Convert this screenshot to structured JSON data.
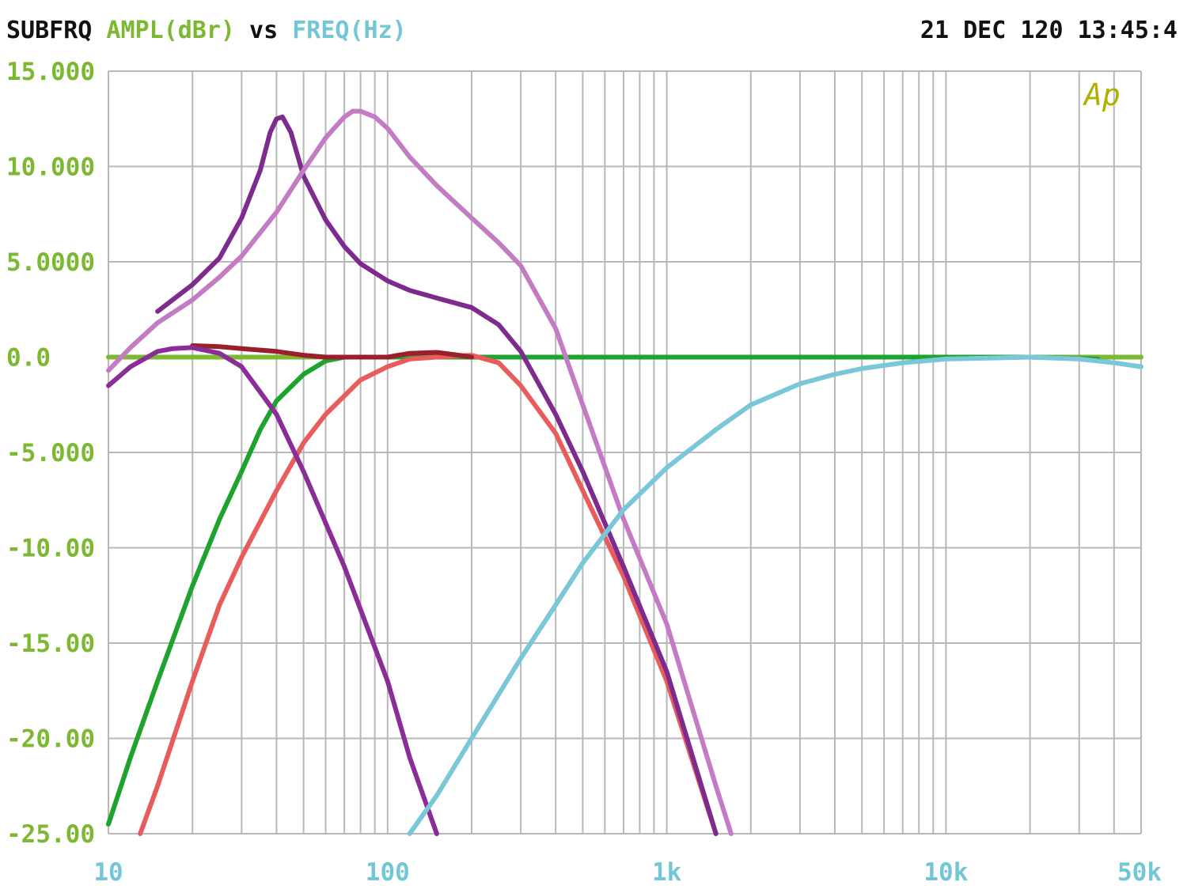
{
  "header": {
    "left_parts": [
      {
        "text": "SUBFRQ",
        "color": "#111111"
      },
      {
        "text": "AMPL(dBr)",
        "color": "#7cb832"
      },
      {
        "text": "vs",
        "color": "#111111"
      },
      {
        "text": "FREQ(Hz)",
        "color": "#72c6d6"
      }
    ],
    "timestamp": "21 DEC 120 13:45:4"
  },
  "logo": {
    "text": "Ap",
    "color": "#b0b000"
  },
  "colors": {
    "grid": "#b8b8b8",
    "y_tick_label": "#7cb832",
    "x_tick_label": "#72c6d6",
    "background": "#ffffff"
  },
  "chart_data": {
    "type": "line",
    "title": "",
    "xlabel": "FREQ(Hz)",
    "ylabel": "AMPL(dBr)",
    "x_scale": "log",
    "xlim": [
      10,
      50000
    ],
    "ylim": [
      -25,
      15
    ],
    "grid": true,
    "y_ticks": [
      15,
      10,
      5,
      0,
      -5,
      -10,
      -15,
      -20,
      -25
    ],
    "y_tick_labels": [
      "15.000",
      "10.000",
      "5.0000",
      "0.0",
      "-5.000",
      "-10.00",
      "-15.00",
      "-20.00",
      "-25.00"
    ],
    "x_ticks": [
      10,
      100,
      1000,
      10000,
      50000
    ],
    "x_tick_labels": [
      "10",
      "100",
      "1k",
      "10k",
      "50k"
    ],
    "series": [
      {
        "color": "#7cb832",
        "points": [
          [
            10,
            0
          ],
          [
            50000,
            0
          ]
        ]
      },
      {
        "color": "#1ea32e",
        "points": [
          [
            10,
            -24.5
          ],
          [
            12,
            -21
          ],
          [
            15,
            -17
          ],
          [
            20,
            -12
          ],
          [
            25,
            -8.5
          ],
          [
            30,
            -6
          ],
          [
            35,
            -3.8
          ],
          [
            40,
            -2.3
          ],
          [
            50,
            -0.9
          ],
          [
            60,
            -0.2
          ],
          [
            70,
            0
          ],
          [
            200,
            0
          ],
          [
            1000,
            0
          ],
          [
            10000,
            0
          ],
          [
            20000,
            0
          ],
          [
            35000,
            -0.1
          ]
        ]
      },
      {
        "color": "#e85c5c",
        "points": [
          [
            13,
            -25
          ],
          [
            15,
            -22.5
          ],
          [
            20,
            -17
          ],
          [
            25,
            -13
          ],
          [
            30,
            -10.5
          ],
          [
            40,
            -7
          ],
          [
            50,
            -4.5
          ],
          [
            60,
            -3
          ],
          [
            80,
            -1.2
          ],
          [
            100,
            -0.5
          ],
          [
            120,
            -0.1
          ],
          [
            150,
            0
          ],
          [
            200,
            0.1
          ],
          [
            250,
            -0.3
          ],
          [
            300,
            -1.5
          ],
          [
            400,
            -4
          ],
          [
            500,
            -7
          ],
          [
            700,
            -11.5
          ],
          [
            1000,
            -17
          ],
          [
            1500,
            -25
          ]
        ]
      },
      {
        "color": "#9a1f2a",
        "points": [
          [
            20,
            0.6
          ],
          [
            25,
            0.55
          ],
          [
            30,
            0.45
          ],
          [
            40,
            0.3
          ],
          [
            50,
            0.1
          ],
          [
            60,
            0
          ],
          [
            70,
            0
          ],
          [
            100,
            0
          ],
          [
            120,
            0.2
          ],
          [
            150,
            0.25
          ],
          [
            180,
            0.1
          ],
          [
            200,
            0
          ]
        ]
      },
      {
        "color": "#8b2d96",
        "points": [
          [
            10,
            -1.5
          ],
          [
            12,
            -0.5
          ],
          [
            15,
            0.3
          ],
          [
            17,
            0.45
          ],
          [
            20,
            0.5
          ],
          [
            25,
            0.2
          ],
          [
            30,
            -0.5
          ],
          [
            40,
            -3
          ],
          [
            50,
            -6
          ],
          [
            70,
            -11
          ],
          [
            100,
            -17
          ],
          [
            120,
            -21
          ],
          [
            150,
            -25
          ]
        ]
      },
      {
        "color": "#7e2b8e",
        "points": [
          [
            15,
            2.4
          ],
          [
            20,
            3.8
          ],
          [
            25,
            5.2
          ],
          [
            30,
            7.3
          ],
          [
            35,
            9.8
          ],
          [
            38,
            11.8
          ],
          [
            40,
            12.5
          ],
          [
            42,
            12.6
          ],
          [
            45,
            11.8
          ],
          [
            50,
            9.5
          ],
          [
            60,
            7.2
          ],
          [
            70,
            5.8
          ],
          [
            80,
            4.9
          ],
          [
            100,
            4
          ],
          [
            120,
            3.5
          ],
          [
            150,
            3.1
          ],
          [
            200,
            2.6
          ],
          [
            250,
            1.7
          ],
          [
            300,
            0.3
          ],
          [
            400,
            -3
          ],
          [
            500,
            -6
          ],
          [
            700,
            -11
          ],
          [
            1000,
            -16.5
          ],
          [
            1500,
            -25
          ]
        ]
      },
      {
        "color": "#c37cc4",
        "points": [
          [
            10,
            -0.7
          ],
          [
            12,
            0.5
          ],
          [
            15,
            1.8
          ],
          [
            20,
            3
          ],
          [
            25,
            4.2
          ],
          [
            30,
            5.3
          ],
          [
            40,
            7.6
          ],
          [
            50,
            9.8
          ],
          [
            60,
            11.5
          ],
          [
            70,
            12.6
          ],
          [
            75,
            12.9
          ],
          [
            80,
            12.9
          ],
          [
            90,
            12.6
          ],
          [
            100,
            12
          ],
          [
            120,
            10.5
          ],
          [
            150,
            9
          ],
          [
            200,
            7.3
          ],
          [
            250,
            6
          ],
          [
            300,
            4.8
          ],
          [
            400,
            1.5
          ],
          [
            500,
            -2.5
          ],
          [
            700,
            -8.5
          ],
          [
            1000,
            -14
          ],
          [
            1500,
            -22.5
          ],
          [
            1700,
            -25
          ]
        ]
      },
      {
        "color": "#7ac7da",
        "points": [
          [
            120,
            -25
          ],
          [
            150,
            -23
          ],
          [
            200,
            -20
          ],
          [
            300,
            -15.8
          ],
          [
            400,
            -13
          ],
          [
            500,
            -10.8
          ],
          [
            700,
            -8
          ],
          [
            1000,
            -5.8
          ],
          [
            1500,
            -3.8
          ],
          [
            2000,
            -2.5
          ],
          [
            3000,
            -1.4
          ],
          [
            4000,
            -0.9
          ],
          [
            5000,
            -0.6
          ],
          [
            7000,
            -0.3
          ],
          [
            10000,
            -0.1
          ],
          [
            20000,
            0
          ],
          [
            30000,
            -0.1
          ],
          [
            40000,
            -0.3
          ],
          [
            50000,
            -0.5
          ]
        ]
      }
    ]
  }
}
